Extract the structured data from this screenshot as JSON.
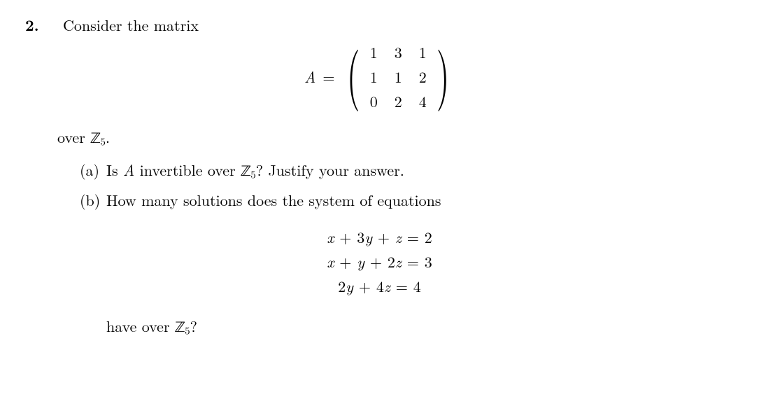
{
  "problem_number": "2.",
  "intro": "Consider the matrix",
  "matrix_name": "A",
  "equals": "=",
  "matrix": {
    "rows": [
      [
        "1",
        "3",
        "1"
      ],
      [
        "1",
        "1",
        "2"
      ],
      [
        "0",
        "2",
        "4"
      ]
    ]
  },
  "over_line_prefix": "over ",
  "ring": "ℤ",
  "ring_sub": "5",
  "period": ".",
  "part_a_label": "(a)",
  "part_a_prefix": "Is ",
  "part_a_mid": " invertible over ",
  "part_a_suffix": "? Justify your answer.",
  "part_b_label": "(b)",
  "part_b_text": "How many solutions does the system of equations",
  "system": {
    "eq1": "x + 3y + z = 2",
    "eq2": "x + y + 2z = 3",
    "eq3": "2y + 4z = 4"
  },
  "have_prefix": "have over ",
  "have_suffix": "?"
}
